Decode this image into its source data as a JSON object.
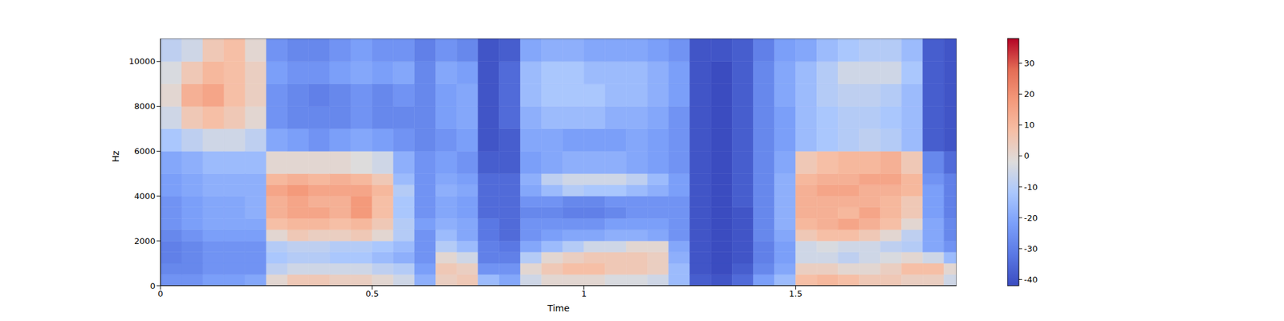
{
  "chart_data": {
    "type": "heatmap",
    "xlabel": "Time",
    "ylabel": "Hz",
    "xlim": [
      0,
      1.88
    ],
    "xticks": [
      0,
      0.5,
      1,
      1.5
    ],
    "ylim": [
      0,
      11025
    ],
    "yticks": [
      0,
      2000,
      4000,
      6000,
      8000,
      10000
    ],
    "x": [
      0,
      0.05,
      0.1,
      0.15,
      0.2,
      0.25,
      0.3,
      0.35,
      0.4,
      0.45,
      0.5,
      0.55,
      0.6,
      0.65,
      0.7,
      0.75,
      0.8,
      0.85,
      0.9,
      0.95,
      1.0,
      1.05,
      1.1,
      1.15,
      1.2,
      1.25,
      1.3,
      1.35,
      1.4,
      1.45,
      1.5,
      1.55,
      1.6,
      1.65,
      1.7,
      1.75,
      1.8,
      1.85
    ],
    "y": [
      0,
      500,
      1000,
      1500,
      2000,
      2500,
      3000,
      3500,
      4000,
      4500,
      5000,
      6000,
      7000,
      8000,
      9000,
      10000
    ],
    "cells": [
      [
        -25,
        -28,
        -30,
        -30,
        -28,
        -25,
        -25,
        -25,
        -22,
        -22,
        -20,
        -12,
        -5,
        0,
        -3,
        -8
      ],
      [
        -25,
        -28,
        -28,
        -28,
        -25,
        -22,
        -22,
        -22,
        -20,
        -20,
        -18,
        -8,
        5,
        12,
        5,
        -5
      ],
      [
        -22,
        -25,
        -25,
        -25,
        -22,
        -20,
        -20,
        -20,
        -18,
        -18,
        -15,
        -5,
        8,
        15,
        10,
        5
      ],
      [
        -22,
        -25,
        -25,
        -25,
        -22,
        -20,
        -20,
        -20,
        -18,
        -18,
        -15,
        -5,
        5,
        8,
        8,
        8
      ],
      [
        -20,
        -25,
        -25,
        -25,
        -22,
        -20,
        -18,
        -18,
        -18,
        -18,
        -15,
        -8,
        0,
        3,
        3,
        0
      ],
      [
        0,
        -8,
        -12,
        -10,
        0,
        8,
        12,
        12,
        15,
        10,
        0,
        -20,
        -25,
        -25,
        -22,
        -25
      ],
      [
        5,
        -5,
        -10,
        -8,
        5,
        10,
        15,
        15,
        18,
        12,
        0,
        -22,
        -28,
        -28,
        -25,
        -28
      ],
      [
        5,
        -5,
        -10,
        -8,
        3,
        10,
        15,
        12,
        15,
        10,
        0,
        -25,
        -28,
        -30,
        -25,
        -28
      ],
      [
        3,
        -5,
        -12,
        -10,
        3,
        8,
        12,
        12,
        15,
        12,
        0,
        -22,
        -28,
        -28,
        -22,
        -25
      ],
      [
        3,
        -5,
        -12,
        -10,
        5,
        10,
        18,
        18,
        15,
        10,
        -2,
        -20,
        -25,
        -25,
        -20,
        -22
      ],
      [
        0,
        -8,
        -15,
        -12,
        0,
        5,
        8,
        8,
        10,
        5,
        -5,
        -22,
        -28,
        -28,
        -22,
        -25
      ],
      [
        -5,
        -10,
        -18,
        -15,
        -10,
        -10,
        -12,
        -12,
        -10,
        -15,
        -18,
        -25,
        -28,
        -25,
        -20,
        -25
      ],
      [
        -18,
        -22,
        -25,
        -25,
        -25,
        -22,
        -25,
        -25,
        -25,
        -25,
        -25,
        -28,
        -28,
        -28,
        -28,
        -30
      ],
      [
        3,
        5,
        0,
        -10,
        -15,
        -18,
        -20,
        -20,
        -18,
        -20,
        -22,
        -25,
        -22,
        -22,
        -20,
        -25
      ],
      [
        5,
        3,
        -5,
        -15,
        -20,
        -20,
        -22,
        -22,
        -20,
        -22,
        -25,
        -22,
        -20,
        -20,
        -22,
        -28
      ],
      [
        -15,
        -25,
        -30,
        -30,
        -32,
        -32,
        -35,
        -35,
        -35,
        -35,
        -38,
        -40,
        -40,
        -40,
        -40,
        -40
      ],
      [
        -20,
        -25,
        -30,
        -32,
        -35,
        -35,
        -35,
        -35,
        -35,
        -35,
        -38,
        -38,
        -35,
        -35,
        -35,
        -38
      ],
      [
        -5,
        0,
        -10,
        -20,
        -25,
        -25,
        -28,
        -25,
        -20,
        -18,
        -22,
        -20,
        -18,
        -15,
        -15,
        -20
      ],
      [
        0,
        5,
        0,
        -15,
        -22,
        -25,
        -28,
        -25,
        -15,
        -8,
        -20,
        -20,
        -15,
        -12,
        -12,
        -18
      ],
      [
        0,
        8,
        3,
        -10,
        -20,
        -25,
        -30,
        -28,
        -10,
        -5,
        -18,
        -22,
        -15,
        -12,
        -12,
        -18
      ],
      [
        0,
        8,
        5,
        -5,
        -20,
        -25,
        -30,
        -28,
        -12,
        -5,
        -18,
        -22,
        -15,
        -12,
        -15,
        -20
      ],
      [
        -3,
        5,
        5,
        -5,
        -18,
        -22,
        -28,
        -25,
        -12,
        -5,
        -18,
        -22,
        -18,
        -15,
        -15,
        -20
      ],
      [
        -3,
        5,
        5,
        0,
        -18,
        -22,
        -25,
        -25,
        -15,
        -8,
        -20,
        -20,
        -18,
        -15,
        -15,
        -20
      ],
      [
        -5,
        3,
        3,
        0,
        -20,
        -22,
        -25,
        -25,
        -18,
        -15,
        -22,
        -22,
        -20,
        -18,
        -18,
        -22
      ],
      [
        -15,
        -15,
        -18,
        -20,
        -25,
        -25,
        -25,
        -25,
        -22,
        -22,
        -25,
        -25,
        -25,
        -22,
        -22,
        -25
      ],
      [
        -38,
        -40,
        -40,
        -40,
        -40,
        -40,
        -40,
        -40,
        -40,
        -40,
        -40,
        -40,
        -40,
        -40,
        -40,
        -40
      ],
      [
        -40,
        -42,
        -42,
        -42,
        -42,
        -42,
        -42,
        -42,
        -42,
        -42,
        -42,
        -42,
        -42,
        -42,
        -42,
        -40
      ],
      [
        -35,
        -38,
        -40,
        -40,
        -40,
        -40,
        -40,
        -38,
        -38,
        -38,
        -38,
        -38,
        -38,
        -38,
        -38,
        -38
      ],
      [
        -22,
        -28,
        -30,
        -30,
        -28,
        -28,
        -28,
        -28,
        -28,
        -28,
        -28,
        -28,
        -28,
        -28,
        -28,
        -30
      ],
      [
        -15,
        -20,
        -22,
        -22,
        -20,
        -18,
        -18,
        -18,
        -18,
        -18,
        -20,
        -22,
        -22,
        -20,
        -20,
        -22
      ],
      [
        8,
        3,
        -5,
        -5,
        5,
        10,
        12,
        12,
        12,
        10,
        5,
        -15,
        -15,
        -15,
        -15,
        -20
      ],
      [
        10,
        3,
        -5,
        -3,
        8,
        12,
        12,
        12,
        15,
        12,
        8,
        -12,
        -12,
        -10,
        -10,
        -15
      ],
      [
        8,
        0,
        -8,
        -5,
        8,
        15,
        10,
        12,
        15,
        12,
        10,
        -10,
        -10,
        -8,
        -5,
        -12
      ],
      [
        5,
        0,
        -5,
        -5,
        5,
        12,
        15,
        12,
        12,
        15,
        10,
        -8,
        -10,
        -8,
        -5,
        -10
      ],
      [
        5,
        3,
        -3,
        -8,
        0,
        8,
        10,
        10,
        12,
        15,
        12,
        -10,
        -12,
        -10,
        -5,
        -10
      ],
      [
        3,
        8,
        0,
        -10,
        -8,
        0,
        5,
        5,
        10,
        10,
        5,
        -15,
        -15,
        -15,
        -12,
        -15
      ],
      [
        3,
        8,
        -5,
        -20,
        -20,
        -20,
        -22,
        -22,
        -22,
        -25,
        -28,
        -38,
        -38,
        -38,
        -38,
        -38
      ],
      [
        -5,
        0,
        -15,
        -25,
        -28,
        -28,
        -30,
        -30,
        -30,
        -30,
        -35,
        -40,
        -40,
        -40,
        -40,
        -40
      ]
    ],
    "colorbar": {
      "range": [
        -42,
        38
      ],
      "ticks": [
        -40,
        -30,
        -20,
        -10,
        0,
        10,
        20,
        30
      ]
    }
  }
}
